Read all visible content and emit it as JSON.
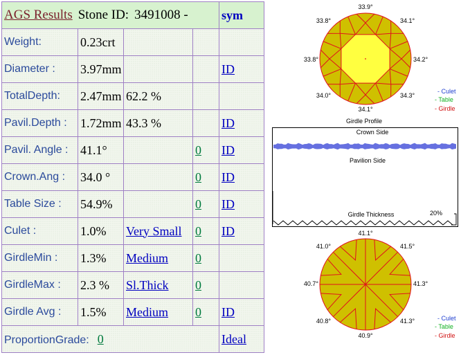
{
  "header": {
    "title": "AGS  Results",
    "stone_id_label": "Stone ID:",
    "stone_id_value": "3491008 -",
    "sym_label": "sym"
  },
  "rows": {
    "weight": {
      "label": "Weight:",
      "value": "0.23crt"
    },
    "diameter": {
      "label": "Diameter :",
      "value": "3.97mm",
      "id_link": "ID"
    },
    "total_depth": {
      "label": "TotalDepth:",
      "value": "2.47mm",
      "percent": "62.2 %"
    },
    "pavil_depth": {
      "label": "Pavil.Depth :",
      "value": "1.72mm",
      "percent": "43.3 %",
      "id_link": "ID"
    },
    "pavil_angle": {
      "label": "Pavil. Angle :",
      "value": "41.1°",
      "grade": "0",
      "id_link": "ID "
    },
    "crown_angle": {
      "label": "Crown.Ang :",
      "value": "34.0 °",
      "grade": "0",
      "id_link": "ID"
    },
    "table_size": {
      "label": "Table Size :",
      "value": "54.9%",
      "grade": "0",
      "id_link": "ID"
    },
    "culet": {
      "label": "Culet :",
      "value": "1.0%",
      "desc": "Very Small",
      "grade": "0",
      "id_link": "ID"
    },
    "girdle_min": {
      "label": "GirdleMin :",
      "value": "1.3%",
      "desc": "Medium",
      "grade": "0"
    },
    "girdle_max": {
      "label": "GirdleMax :",
      "value": "2.3 %",
      "desc": "Sl.Thick ",
      "grade": "0"
    },
    "girdle_avg": {
      "label": "Girdle Avg :",
      "value": "1.5%",
      "desc": "Medium ",
      "grade": "0 ",
      "id_link": "ID "
    },
    "proportion": {
      "label": "ProportionGrade:",
      "grade": "0",
      "result": "Ideal "
    }
  },
  "crown_diagram": {
    "angles": [
      "33.9°",
      "34.1°",
      "34.2°",
      "34.3°",
      "34.1°",
      "34.0°",
      "33.8°",
      "33.8°"
    ],
    "caption": "Girdle Profile",
    "legend": [
      "- Culet",
      "- Table",
      "- Girdle"
    ]
  },
  "girdle_profile": {
    "crown_side": "Crown Side",
    "pavilion_side": "Pavilion Side",
    "thickness_label": "Girdle Thickness",
    "percent": "20%"
  },
  "pavilion_diagram": {
    "angles": [
      "41.1°",
      "41.5°",
      "41.3°",
      "41.3°",
      "40.9°",
      "40.8°",
      "40.7°",
      "41.0°"
    ],
    "legend": [
      "- Culet",
      "- Table",
      "- Girdle"
    ]
  },
  "colors": {
    "table_border": "#9e7fc4",
    "cell_bg": "#f2f6ee",
    "header_bg": "#d7f2cf",
    "label_blue": "#2b4a9c",
    "link_blue": "#0000c0",
    "grade_green": "#007a3d",
    "diagram_fill": "#cfc000",
    "table_fill": "#ffff40",
    "facet_red": "#e0101c",
    "legend_culet": "#2040d0",
    "legend_table": "#10b020",
    "legend_girdle": "#d01010",
    "girdle_band": "#6670e0"
  }
}
